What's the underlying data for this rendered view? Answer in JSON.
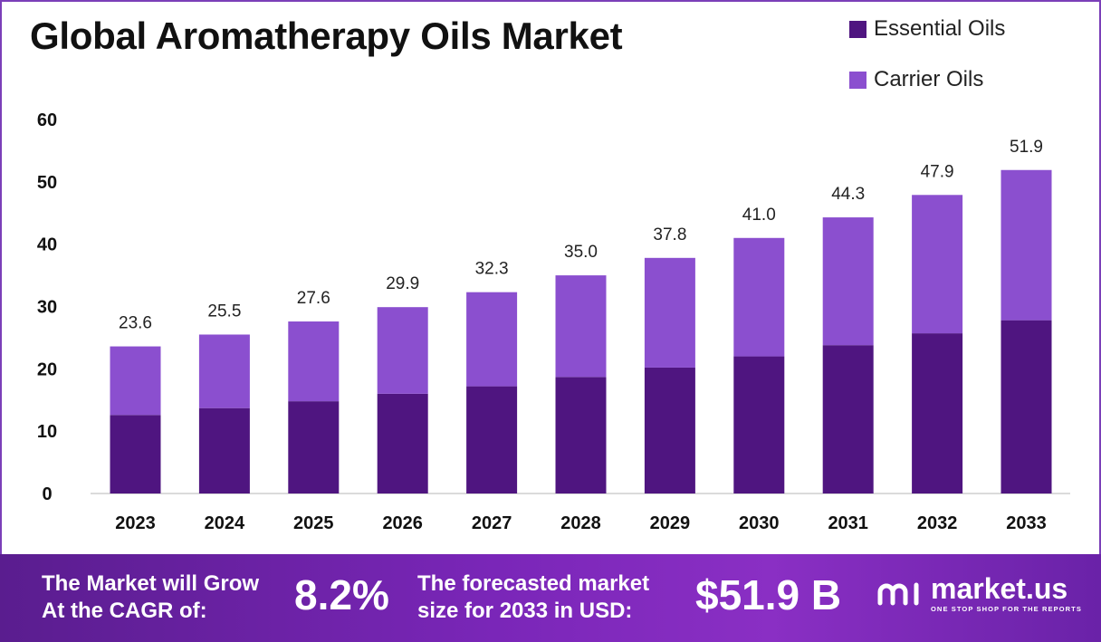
{
  "chart_data": {
    "type": "bar",
    "stacked": true,
    "title": "Global Aromatherapy Oils Market",
    "categories": [
      "2023",
      "2024",
      "2025",
      "2026",
      "2027",
      "2028",
      "2029",
      "2030",
      "2031",
      "2032",
      "2033"
    ],
    "series": [
      {
        "name": "Essential Oils",
        "color": "#4f1580",
        "values": [
          12.6,
          13.7,
          14.8,
          16.0,
          17.2,
          18.7,
          20.2,
          22.0,
          23.8,
          25.7,
          27.8
        ]
      },
      {
        "name": "Carrier Oils",
        "color": "#8b4fcf",
        "values": [
          11.0,
          11.8,
          12.8,
          13.9,
          15.1,
          16.3,
          17.6,
          19.0,
          20.5,
          22.2,
          24.1
        ]
      }
    ],
    "totals": [
      "23.6",
      "25.5",
      "27.6",
      "29.9",
      "32.3",
      "35.0",
      "37.8",
      "41.0",
      "44.3",
      "47.9",
      "51.9"
    ],
    "ylim": [
      0,
      60
    ],
    "yticks": [
      0,
      10,
      20,
      30,
      40,
      50,
      60
    ],
    "grid": false,
    "legend_position": "top-right"
  },
  "banner": {
    "cagr_label_line1": "The Market will Grow",
    "cagr_label_line2": "At the CAGR of:",
    "cagr_value": "8.2%",
    "forecast_label_line1": "The forecasted market",
    "forecast_label_line2": "size for 2033 in USD:",
    "forecast_value": "$51.9 B",
    "logo_name": "market.us",
    "logo_tagline": "ONE STOP SHOP FOR THE REPORTS"
  }
}
